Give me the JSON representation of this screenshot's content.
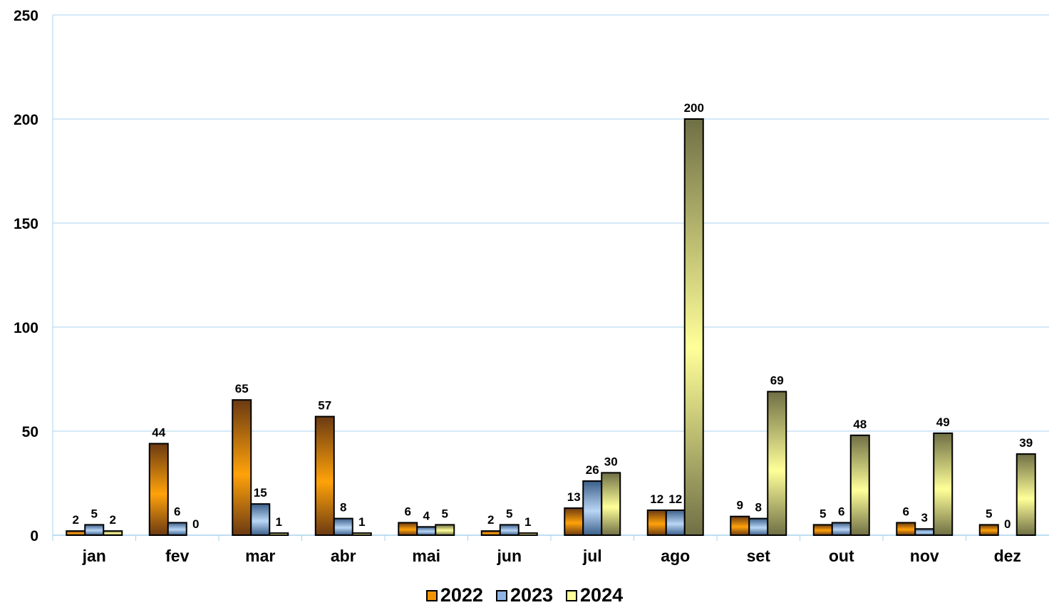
{
  "chart_data": {
    "type": "bar",
    "categories": [
      "jan",
      "fev",
      "mar",
      "abr",
      "mai",
      "jun",
      "jul",
      "ago",
      "set",
      "out",
      "nov",
      "dez"
    ],
    "series": [
      {
        "name": "2022",
        "values": [
          2,
          44,
          65,
          57,
          6,
          2,
          13,
          12,
          9,
          5,
          6,
          5
        ],
        "color": "#F29400"
      },
      {
        "name": "2023",
        "values": [
          5,
          6,
          15,
          8,
          4,
          5,
          26,
          12,
          8,
          6,
          3,
          0
        ],
        "color": "#8EB4E3"
      },
      {
        "name": "2024",
        "values": [
          2,
          0,
          1,
          1,
          5,
          1,
          30,
          200,
          69,
          48,
          49,
          39
        ],
        "color": "#FFFF99"
      }
    ],
    "yticks": [
      0,
      50,
      100,
      150,
      200,
      250
    ],
    "ylim": [
      0,
      250
    ],
    "grid": true,
    "legend_position": "bottom",
    "data_labels": true
  }
}
